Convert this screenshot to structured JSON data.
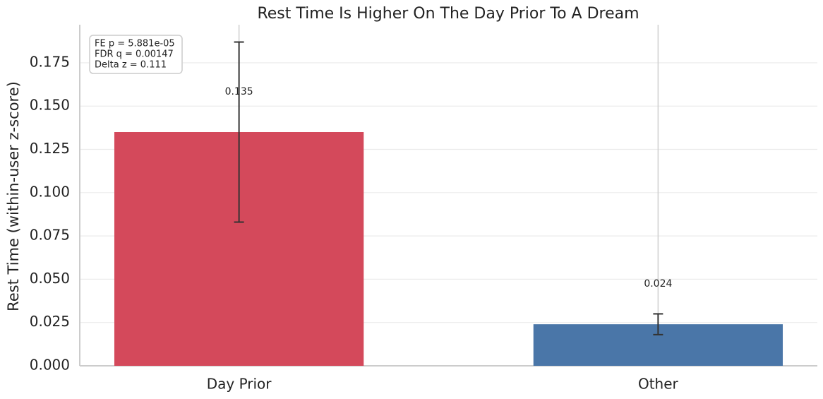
{
  "chart_data": {
    "type": "bar",
    "title": "Rest Time Is Higher On The Day Prior To A Dream",
    "y_label": "Rest Time (within-user z-score)",
    "categories": [
      "Day Prior",
      "Other"
    ],
    "values": [
      0.135,
      0.024
    ],
    "errors": [
      0.052,
      0.006
    ],
    "colors": [
      "#d4495b",
      "#4a76a8"
    ],
    "annotation": [
      "FE p = 5.881e-05",
      "FDR q = 0.00147",
      "Delta z = 0.111"
    ],
    "ylim": [
      0,
      0.197
    ],
    "yticks": [
      {
        "value": 0,
        "label": "0.000"
      },
      {
        "value": 0.025,
        "label": "0.025"
      },
      {
        "value": 0.05,
        "label": "0.050"
      },
      {
        "value": 0.075,
        "label": "0.075"
      },
      {
        "value": 0.1,
        "label": "0.100"
      },
      {
        "value": 0.125,
        "label": "0.125"
      },
      {
        "value": 0.15,
        "label": "0.150"
      },
      {
        "value": 0.175,
        "label": "0.175"
      }
    ],
    "grid": true
  }
}
